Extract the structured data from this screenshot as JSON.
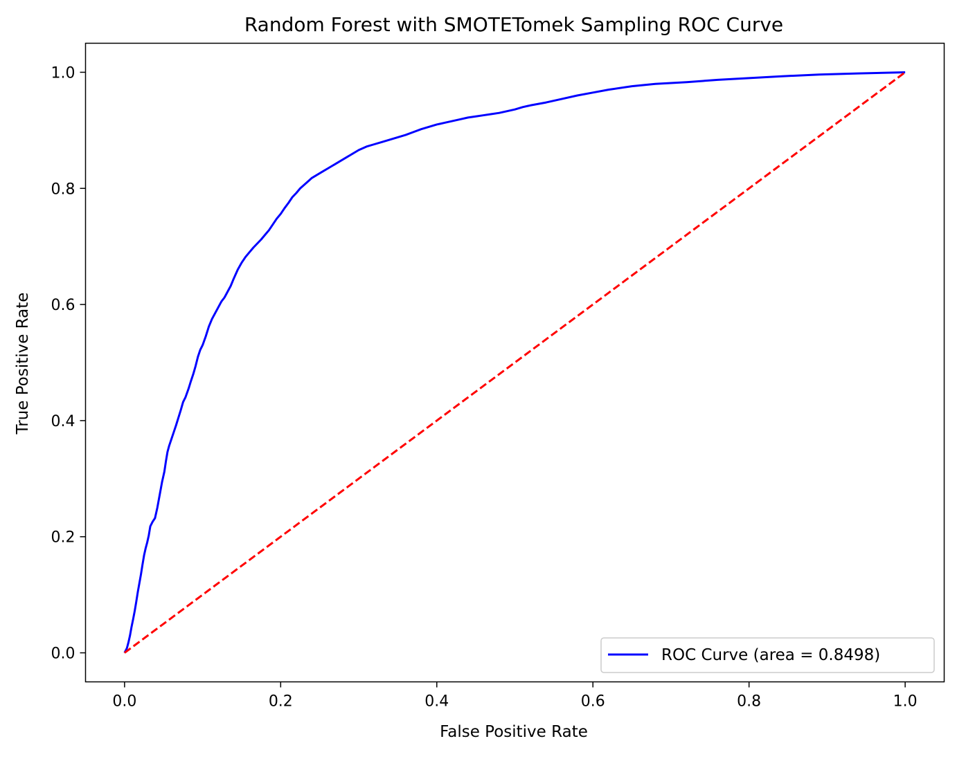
{
  "chart_data": {
    "type": "line",
    "title": "Random Forest with SMOTETomek Sampling ROC Curve",
    "xlabel": "False Positive Rate",
    "ylabel": "True Positive Rate",
    "xlim": [
      -0.05,
      1.05
    ],
    "ylim": [
      -0.05,
      1.05
    ],
    "xticks": [
      "0.0",
      "0.2",
      "0.4",
      "0.6",
      "0.8",
      "1.0"
    ],
    "yticks": [
      "0.0",
      "0.2",
      "0.4",
      "0.6",
      "0.8",
      "1.0"
    ],
    "grid": false,
    "legend_position": "lower-right",
    "series": [
      {
        "name": "ROC Curve (area = 0.8498)",
        "color": "#0000ff",
        "style": "solid",
        "x": [
          0.0,
          0.003,
          0.005,
          0.007,
          0.009,
          0.011,
          0.013,
          0.015,
          0.017,
          0.019,
          0.021,
          0.023,
          0.025,
          0.027,
          0.029,
          0.031,
          0.033,
          0.036,
          0.039,
          0.042,
          0.045,
          0.048,
          0.051,
          0.053,
          0.055,
          0.057,
          0.06,
          0.063,
          0.066,
          0.069,
          0.072,
          0.075,
          0.078,
          0.082,
          0.085,
          0.088,
          0.091,
          0.094,
          0.097,
          0.1,
          0.104,
          0.108,
          0.112,
          0.116,
          0.12,
          0.124,
          0.128,
          0.132,
          0.136,
          0.14,
          0.145,
          0.15,
          0.155,
          0.16,
          0.165,
          0.17,
          0.175,
          0.18,
          0.185,
          0.19,
          0.195,
          0.2,
          0.205,
          0.21,
          0.215,
          0.22,
          0.225,
          0.23,
          0.235,
          0.24,
          0.245,
          0.25,
          0.255,
          0.26,
          0.265,
          0.27,
          0.275,
          0.28,
          0.285,
          0.29,
          0.295,
          0.3,
          0.31,
          0.32,
          0.33,
          0.34,
          0.35,
          0.36,
          0.37,
          0.38,
          0.39,
          0.4,
          0.41,
          0.42,
          0.43,
          0.44,
          0.45,
          0.46,
          0.47,
          0.48,
          0.49,
          0.5,
          0.51,
          0.52,
          0.54,
          0.56,
          0.58,
          0.6,
          0.62,
          0.65,
          0.68,
          0.72,
          0.76,
          0.8,
          0.84,
          0.89,
          0.94,
          1.0
        ],
        "y": [
          0.0,
          0.008,
          0.018,
          0.03,
          0.045,
          0.058,
          0.072,
          0.088,
          0.105,
          0.12,
          0.135,
          0.152,
          0.168,
          0.18,
          0.19,
          0.202,
          0.218,
          0.226,
          0.232,
          0.25,
          0.272,
          0.294,
          0.312,
          0.33,
          0.346,
          0.356,
          0.368,
          0.38,
          0.392,
          0.405,
          0.418,
          0.432,
          0.44,
          0.455,
          0.468,
          0.48,
          0.494,
          0.51,
          0.522,
          0.53,
          0.545,
          0.562,
          0.575,
          0.585,
          0.595,
          0.605,
          0.612,
          0.622,
          0.632,
          0.645,
          0.66,
          0.672,
          0.682,
          0.69,
          0.698,
          0.705,
          0.712,
          0.72,
          0.728,
          0.738,
          0.748,
          0.756,
          0.766,
          0.775,
          0.785,
          0.792,
          0.8,
          0.806,
          0.812,
          0.818,
          0.822,
          0.826,
          0.83,
          0.834,
          0.838,
          0.842,
          0.846,
          0.85,
          0.854,
          0.858,
          0.862,
          0.866,
          0.872,
          0.876,
          0.88,
          0.884,
          0.888,
          0.892,
          0.897,
          0.902,
          0.906,
          0.91,
          0.913,
          0.916,
          0.919,
          0.922,
          0.924,
          0.926,
          0.928,
          0.93,
          0.933,
          0.936,
          0.94,
          0.943,
          0.948,
          0.954,
          0.96,
          0.965,
          0.97,
          0.976,
          0.98,
          0.983,
          0.987,
          0.99,
          0.993,
          0.996,
          0.998,
          1.0
        ]
      },
      {
        "name": "",
        "color": "#ff0000",
        "style": "dashed",
        "x": [
          0.0,
          1.0
        ],
        "y": [
          0.0,
          1.0
        ]
      }
    ]
  }
}
